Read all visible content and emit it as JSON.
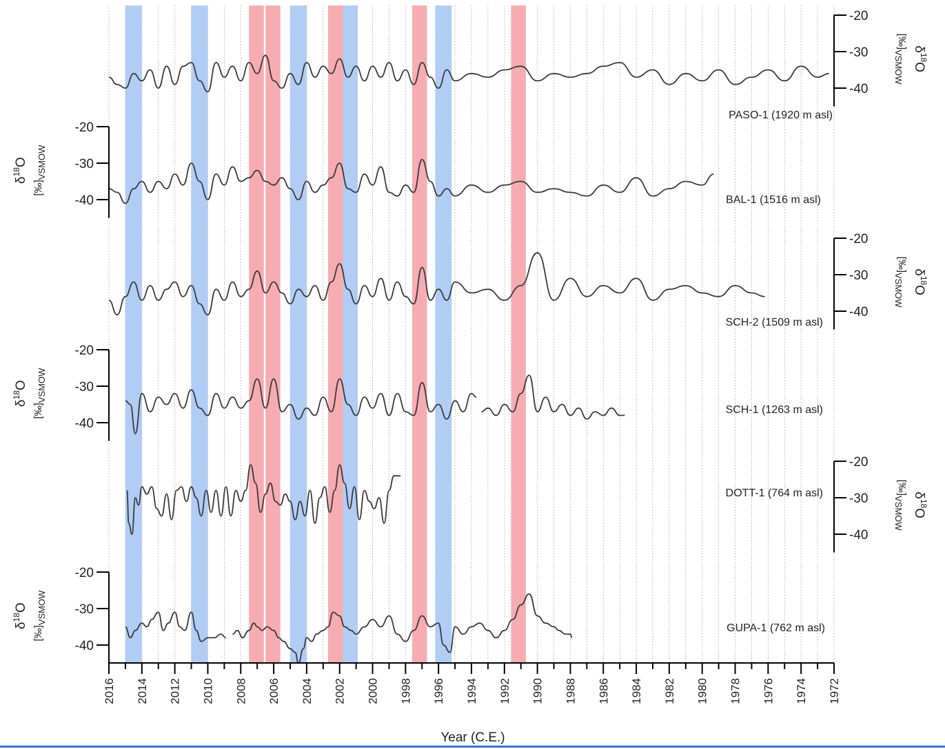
{
  "chart_data": {
    "type": "line",
    "xlabel": "Year (C.E.)",
    "xlim": [
      2016,
      1972
    ],
    "x_ticks": [
      "2016",
      "2014",
      "2012",
      "2010",
      "2008",
      "2006",
      "2004",
      "2002",
      "2000",
      "1998",
      "1996",
      "1994",
      "1992",
      "1990",
      "1988",
      "1986",
      "1984",
      "1982",
      "1980",
      "1978",
      "1976",
      "1974",
      "1972"
    ],
    "ylim": [
      -45,
      -20
    ],
    "y_ticks": [
      "-20",
      "-30",
      "-40"
    ],
    "grid": "vertical dotted lines every year",
    "colors": {
      "blue_band": "#a9c8f5",
      "red_band": "#f6a3a8",
      "line": "#3a3a3a",
      "accent_rule": "#2e74d6"
    },
    "highlight_bands": [
      {
        "color": "blue",
        "from": 2015.0,
        "to": 2014.0
      },
      {
        "color": "blue",
        "from": 2011.0,
        "to": 2010.0
      },
      {
        "color": "red",
        "from": 2007.5,
        "to": 2006.6
      },
      {
        "color": "red",
        "from": 2006.5,
        "to": 2005.6
      },
      {
        "color": "blue",
        "from": 2005.0,
        "to": 2004.0
      },
      {
        "color": "red",
        "from": 2002.7,
        "to": 2001.8
      },
      {
        "color": "blue",
        "from": 2001.8,
        "to": 2000.9
      },
      {
        "color": "red",
        "from": 1997.6,
        "to": 1996.7
      },
      {
        "color": "blue",
        "from": 1996.2,
        "to": 1995.2
      },
      {
        "color": "red",
        "from": 1991.6,
        "to": 1990.7
      }
    ],
    "series": [
      {
        "name": "PASO-1 (1920 m asl)",
        "axis_side": "right",
        "y_label": "δ18O [‰]VSMOW",
        "x": [
          2016,
          2015.5,
          2015,
          2014.5,
          2014,
          2013.5,
          2013,
          2012.5,
          2012,
          2011.5,
          2011,
          2010.5,
          2010,
          2009.5,
          2009,
          2008.5,
          2008,
          2007.5,
          2007,
          2006.5,
          2006,
          2005.5,
          2005,
          2004.5,
          2004,
          2003.5,
          2003,
          2002.5,
          2002,
          2001.5,
          2001,
          2000.5,
          2000,
          1999.5,
          1999,
          1998.5,
          1998,
          1997.5,
          1997,
          1996.5,
          1996,
          1995.5,
          1995,
          1994,
          1993,
          1992,
          1991,
          1990,
          1989,
          1988,
          1987,
          1986,
          1985,
          1984,
          1983,
          1982,
          1981,
          1980,
          1979,
          1978,
          1977,
          1976,
          1975,
          1974,
          1973,
          1972.3
        ],
        "values": [
          -37,
          -39,
          -40,
          -36,
          -38,
          -35,
          -40,
          -34,
          -39,
          -34,
          -33,
          -38,
          -41,
          -33,
          -37,
          -34,
          -38,
          -33,
          -36,
          -31,
          -38,
          -40,
          -36,
          -39,
          -33,
          -37,
          -34,
          -36,
          -32,
          -37,
          -34,
          -38,
          -34,
          -37,
          -33,
          -38,
          -35,
          -39,
          -33,
          -37,
          -40,
          -35,
          -38,
          -36,
          -37,
          -35,
          -34,
          -38,
          -36,
          -37,
          -36,
          -34,
          -33,
          -37,
          -35,
          -39,
          -36,
          -38,
          -35,
          -39,
          -37,
          -35,
          -38,
          -34,
          -37,
          -36
        ]
      },
      {
        "name": "BAL-1 (1516 m asl)",
        "axis_side": "left",
        "y_label": "δ18O [‰]VSMOW",
        "x": [
          2016,
          2015.5,
          2015,
          2014.5,
          2014,
          2013.5,
          2013,
          2012.5,
          2012,
          2011.5,
          2011,
          2010.5,
          2010,
          2009.5,
          2009,
          2008.5,
          2008,
          2007.5,
          2007,
          2006.5,
          2006,
          2005.5,
          2005,
          2004.5,
          2004,
          2003.5,
          2003,
          2002.5,
          2002,
          2001.5,
          2001,
          2000.5,
          2000,
          1999.5,
          1999,
          1998.5,
          1998,
          1997.5,
          1997,
          1996.5,
          1996,
          1995.5,
          1995,
          1994,
          1993,
          1992,
          1991,
          1990,
          1989,
          1988,
          1987,
          1986,
          1985,
          1984,
          1983,
          1982,
          1981,
          1980,
          1979.3
        ],
        "values": [
          -37,
          -38,
          -41,
          -37,
          -35,
          -38,
          -35,
          -37,
          -33,
          -36,
          -30,
          -35,
          -40,
          -33,
          -36,
          -31,
          -35,
          -34,
          -32,
          -35,
          -36,
          -34,
          -37,
          -40,
          -35,
          -38,
          -36,
          -34,
          -30,
          -37,
          -38,
          -33,
          -36,
          -31,
          -38,
          -39,
          -36,
          -38,
          -29,
          -35,
          -39,
          -37,
          -39,
          -36,
          -38,
          -36,
          -35,
          -38,
          -37,
          -38,
          -39,
          -36,
          -38,
          -34,
          -39,
          -37,
          -35,
          -36,
          -33
        ]
      },
      {
        "name": "SCH-2 (1509 m asl)",
        "axis_side": "right",
        "y_label": "δ18O [‰]VSMOW",
        "x": [
          2016,
          2015.5,
          2015,
          2014.5,
          2014,
          2013.5,
          2013,
          2012.5,
          2012,
          2011.5,
          2011,
          2010.5,
          2010,
          2009.5,
          2009,
          2008.5,
          2008,
          2007.5,
          2007,
          2006.5,
          2006,
          2005.5,
          2005,
          2004.5,
          2004,
          2003.5,
          2003,
          2002.5,
          2002,
          2001.5,
          2001,
          2000.5,
          2000,
          1999.5,
          1999,
          1998.5,
          1998,
          1997.5,
          1997,
          1996.5,
          1996,
          1995.5,
          1995,
          1994,
          1993,
          1992,
          1991,
          1990,
          1989,
          1988,
          1987,
          1986,
          1985,
          1984,
          1983,
          1982,
          1981,
          1980,
          1979,
          1978,
          1977,
          1976.2
        ],
        "values": [
          -37,
          -41,
          -36,
          -32,
          -37,
          -33,
          -37,
          -34,
          -32,
          -36,
          -33,
          -38,
          -41,
          -34,
          -37,
          -32,
          -36,
          -34,
          -29,
          -35,
          -32,
          -35,
          -38,
          -34,
          -36,
          -33,
          -37,
          -32,
          -27,
          -34,
          -38,
          -33,
          -36,
          -31,
          -37,
          -32,
          -36,
          -38,
          -28,
          -37,
          -34,
          -37,
          -32,
          -35,
          -34,
          -37,
          -33,
          -24,
          -37,
          -31,
          -36,
          -33,
          -35,
          -31,
          -37,
          -34,
          -33,
          -35,
          -36,
          -33,
          -35,
          -36
        ]
      },
      {
        "name": "SCH-1 (1263 m asl)",
        "axis_side": "left",
        "y_label": "δ18O [‰]VSMOW",
        "segments": [
          {
            "x": [
              2015,
              2014.7,
              2014.4,
              2014,
              2013.5,
              2013,
              2012.5,
              2012,
              2011.5,
              2011,
              2010.5,
              2010,
              2009.5,
              2009,
              2008.5,
              2008,
              2007.5,
              2007,
              2006.5,
              2006,
              2005.5,
              2005,
              2004.5,
              2004,
              2003.5,
              2003,
              2002.5,
              2002,
              2001.5,
              2001,
              2000.5,
              2000,
              1999.5,
              1999,
              1998.5,
              1998,
              1997.5,
              1997,
              1996.5,
              1996,
              1995.5,
              1995,
              1994.5,
              1994,
              1993.7
            ],
            "values": [
              -34,
              -35,
              -43,
              -32,
              -37,
              -33,
              -35,
              -32,
              -36,
              -31,
              -36,
              -38,
              -32,
              -36,
              -33,
              -36,
              -34,
              -28,
              -36,
              -28,
              -37,
              -35,
              -39,
              -36,
              -38,
              -33,
              -37,
              -28,
              -35,
              -38,
              -33,
              -36,
              -32,
              -38,
              -32,
              -37,
              -38,
              -29,
              -37,
              -35,
              -39,
              -34,
              -37,
              -32,
              -33
            ]
          },
          {
            "x": [
              1993.4,
              1993,
              1992.5,
              1992,
              1991.5,
              1991,
              1990.5,
              1990,
              1989.5,
              1989,
              1988.5,
              1988,
              1987.5,
              1987,
              1986.5,
              1986,
              1985.5,
              1985,
              1984.7
            ],
            "values": [
              -37,
              -36,
              -38,
              -35,
              -37,
              -32,
              -27,
              -37,
              -33,
              -37,
              -35,
              -38,
              -36,
              -39,
              -37,
              -38,
              -36,
              -38,
              -38
            ]
          }
        ]
      },
      {
        "name": "DOTT-1 (764 m asl)",
        "axis_side": "right",
        "y_label": "δ18O [‰]VSMOW",
        "segments": [
          {
            "x": [
              2014.9,
              2014.8,
              2014.6,
              2014.4,
              2014.2,
              2014,
              2013.7,
              2013.4,
              2013.1,
              2012.8,
              2012.5,
              2012.2,
              2011.9,
              2011.6,
              2011.3,
              2011,
              2010.7,
              2010.4,
              2010.1,
              2009.8,
              2009.5,
              2009.2,
              2008.9,
              2008.6,
              2008.3,
              2008,
              2007.7,
              2007.4,
              2007.1,
              2006.8,
              2006.5,
              2006.2,
              2005.9,
              2005.6,
              2005.3,
              2005,
              2004.7,
              2004.4,
              2004.1,
              2003.8,
              2003.5,
              2003.2,
              2002.9,
              2002.6,
              2002.3,
              2002,
              2001.7,
              2001.4,
              2001.1,
              2000.8,
              2000.5,
              2000.2,
              1999.9,
              1999.6,
              1999.3,
              1999,
              1998.7,
              1998.3
            ],
            "values": [
              -28,
              -37,
              -40,
              -30,
              -32,
              -27,
              -29,
              -27,
              -33,
              -35,
              -29,
              -36,
              -28,
              -27,
              -31,
              -27,
              -30,
              -35,
              -28,
              -34,
              -28,
              -35,
              -27,
              -35,
              -28,
              -31,
              -28,
              -21,
              -26,
              -34,
              -29,
              -26,
              -31,
              -32,
              -29,
              -31,
              -36,
              -31,
              -35,
              -28,
              -37,
              -30,
              -27,
              -34,
              -28,
              -21,
              -26,
              -33,
              -27,
              -36,
              -28,
              -31,
              -33,
              -30,
              -37,
              -28,
              -24,
              -24
            ]
          }
        ]
      },
      {
        "name": "GUPA-1 (762 m asl)",
        "axis_side": "left",
        "y_label": "δ18O [‰]VSMOW",
        "segments": [
          {
            "x": [
              2015,
              2014.7,
              2014.4,
              2014,
              2013.7,
              2013.4,
              2013,
              2012.7,
              2012.4,
              2012,
              2011.7,
              2011.4,
              2011,
              2010.7,
              2010.4,
              2010,
              2009.6,
              2009.2,
              2008.9
            ],
            "values": [
              -35,
              -38,
              -36,
              -34,
              -35,
              -33,
              -31,
              -36,
              -34,
              -31,
              -35,
              -36,
              -31,
              -36,
              -39,
              -38,
              -38,
              -37,
              -38
            ]
          },
          {
            "x": [
              2008.5,
              2008.2,
              2007.9,
              2007.5,
              2007.2,
              2007,
              2006.7,
              2006.4,
              2006,
              2005.7,
              2005.4,
              2005,
              2004.7,
              2004.5,
              2004.2,
              2004,
              2003.7,
              2003.4,
              2003,
              2002.7,
              2002.4,
              2002,
              2001.7,
              2001.3,
              2001,
              2000.5,
              2000,
              1999.5,
              1999,
              1998.5,
              1998,
              1997.5,
              1997,
              1996.5,
              1996,
              1995.7,
              1995.3,
              1995,
              1994.5,
              1994,
              1993.5,
              1993,
              1992.5,
              1992,
              1991.5,
              1991,
              1990.5,
              1990,
              1989.5,
              1989,
              1988.7,
              1988.3,
              1988,
              1987.9
            ],
            "values": [
              -37,
              -36,
              -38,
              -36,
              -34,
              -35,
              -36,
              -35,
              -36,
              -38,
              -39,
              -41,
              -42,
              -45,
              -41,
              -38,
              -39,
              -37,
              -36,
              -35,
              -31,
              -32,
              -35,
              -36,
              -37,
              -35,
              -33,
              -35,
              -32,
              -37,
              -39,
              -36,
              -32,
              -35,
              -34,
              -40,
              -42,
              -35,
              -37,
              -35,
              -34,
              -36,
              -38,
              -36,
              -33,
              -29,
              -26,
              -32,
              -34,
              -35,
              -36,
              -37,
              -37,
              -38
            ]
          }
        ]
      }
    ]
  }
}
